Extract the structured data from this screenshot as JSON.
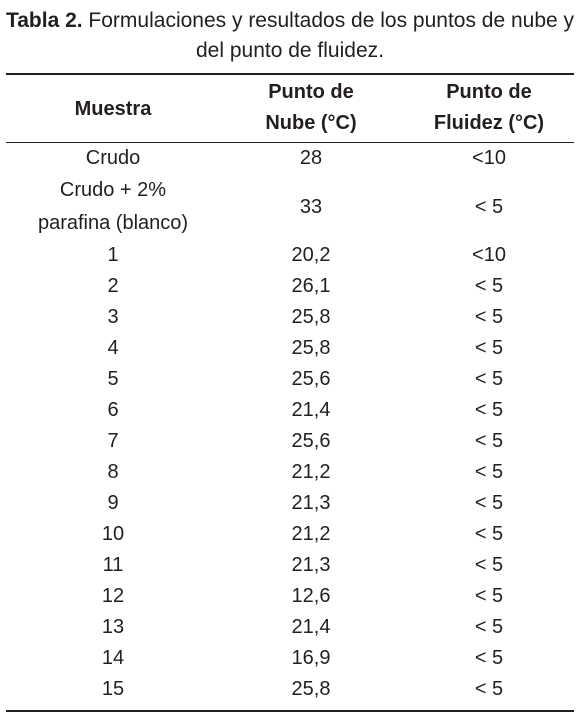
{
  "caption": {
    "label": "Tabla 2.",
    "text": " Formulaciones y resultados de los puntos de nube y del punto de fluidez."
  },
  "table": {
    "headers": {
      "sample": "Muestra",
      "cloud_point_line1": "Punto de",
      "cloud_point_line2": "Nube (°C)",
      "pour_point_line1": "Punto de",
      "pour_point_line2": "Fluidez (°C)"
    },
    "rows": [
      {
        "sample": "Crudo",
        "cloud": "28",
        "pour": "<10"
      },
      {
        "sample_line1": "Crudo + 2%",
        "sample_line2": "parafina (blanco)",
        "cloud": "33",
        "pour": "< 5"
      },
      {
        "sample": "1",
        "cloud": "20,2",
        "pour": "<10"
      },
      {
        "sample": "2",
        "cloud": "26,1",
        "pour": "< 5"
      },
      {
        "sample": "3",
        "cloud": "25,8",
        "pour": "< 5"
      },
      {
        "sample": "4",
        "cloud": "25,8",
        "pour": "< 5"
      },
      {
        "sample": "5",
        "cloud": "25,6",
        "pour": "< 5"
      },
      {
        "sample": "6",
        "cloud": "21,4",
        "pour": "< 5"
      },
      {
        "sample": "7",
        "cloud": "25,6",
        "pour": "< 5"
      },
      {
        "sample": "8",
        "cloud": "21,2",
        "pour": "< 5"
      },
      {
        "sample": "9",
        "cloud": "21,3",
        "pour": "< 5"
      },
      {
        "sample": "10",
        "cloud": "21,2",
        "pour": "< 5"
      },
      {
        "sample": "11",
        "cloud": "21,3",
        "pour": "< 5"
      },
      {
        "sample": "12",
        "cloud": "12,6",
        "pour": "< 5"
      },
      {
        "sample": "13",
        "cloud": "21,4",
        "pour": "< 5"
      },
      {
        "sample": "14",
        "cloud": "16,9",
        "pour": "< 5"
      },
      {
        "sample": "15",
        "cloud": "25,8",
        "pour": "< 5"
      }
    ]
  }
}
